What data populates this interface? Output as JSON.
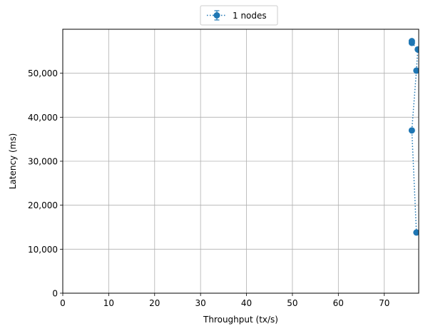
{
  "chart_data": {
    "type": "scatter",
    "xlabel": "Throughput (tx/s)",
    "ylabel": "Latency (ms)",
    "xlim": [
      0,
      77.5
    ],
    "ylim": [
      0,
      60000
    ],
    "xticks": [
      0,
      10,
      20,
      30,
      40,
      50,
      60,
      70
    ],
    "yticks": [
      0,
      10000,
      20000,
      30000,
      40000,
      50000
    ],
    "xtick_labels": [
      "0",
      "10",
      "20",
      "30",
      "40",
      "50",
      "60",
      "70"
    ],
    "ytick_labels": [
      "0",
      "10,000",
      "20,000",
      "30,000",
      "40,000",
      "50,000"
    ],
    "grid": true,
    "legend_position": "top-center",
    "series": [
      {
        "name": "1 nodes",
        "color": "#1f77b4",
        "line_style": "dotted",
        "marker": "circle",
        "x": [
          77.0,
          76.0,
          77.0,
          77.3,
          76.0,
          76.0
        ],
        "y": [
          13800,
          37000,
          50600,
          55400,
          56900,
          57300
        ]
      }
    ]
  }
}
